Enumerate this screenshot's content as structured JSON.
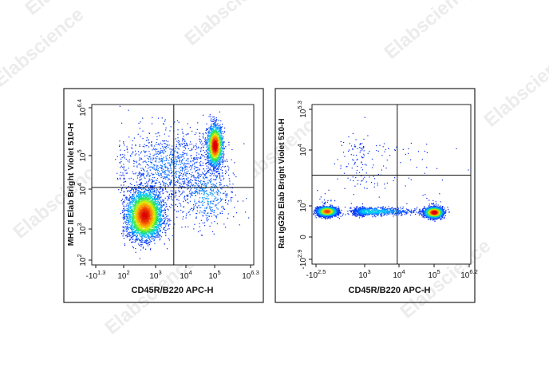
{
  "watermark": "Elabscience",
  "chart_data": [
    {
      "type": "scatter",
      "subtype": "flow-cytometry-density-dot-plot",
      "xlabel": "CD45R/B220 APC-H",
      "ylabel": "MHC II Elab Bright Violet 510-H",
      "x_scale": "biexponential",
      "y_scale": "biexponential",
      "xlim_label_min": "-10^1.3",
      "xlim_label_max": "10^6.3",
      "ylim_label_min": "10^2",
      "ylim_label_max": "10^6.4",
      "x_ticks": [
        {
          "base": "-10",
          "exp": "1.3"
        },
        {
          "base": "10",
          "exp": "2"
        },
        {
          "base": "10",
          "exp": "3"
        },
        {
          "base": "10",
          "exp": "4"
        },
        {
          "base": "10",
          "exp": "5"
        },
        {
          "base": "10",
          "exp": "6.3"
        }
      ],
      "y_ticks": [
        {
          "base": "10",
          "exp": "2"
        },
        {
          "base": "10",
          "exp": "3"
        },
        {
          "base": "10",
          "exp": "4"
        },
        {
          "base": "10",
          "exp": "5"
        },
        {
          "base": "10",
          "exp": "6.4"
        }
      ],
      "x_tick_decades": [
        -1.3,
        2,
        3,
        4,
        5,
        6.3
      ],
      "y_tick_decades": [
        2,
        3,
        4,
        5,
        6.4
      ],
      "quadrant_gate": {
        "x_decade": 3.6,
        "y_decade": 4.05
      },
      "populations": [
        {
          "x_decade": 2.65,
          "y_decade": 3.35,
          "relative_density": 0.95,
          "sx": 0.28,
          "sy": 0.32,
          "n": 3600
        },
        {
          "x_decade": 5.0,
          "y_decade": 5.3,
          "relative_density": 1.0,
          "sx": 0.14,
          "sy": 0.3,
          "n": 1700
        },
        {
          "x_decade": 3.4,
          "y_decade": 4.7,
          "relative_density": 0.15,
          "sx": 0.8,
          "sy": 0.55,
          "n": 1100
        },
        {
          "x_decade": 4.7,
          "y_decade": 3.9,
          "relative_density": 0.2,
          "sx": 0.5,
          "sy": 0.45,
          "n": 500
        }
      ],
      "grid": false,
      "legend": "none"
    },
    {
      "type": "scatter",
      "subtype": "flow-cytometry-density-dot-plot",
      "xlabel": "CD45R/B220 APC-H",
      "ylabel": "Rat IgG2b Elab Bright Violet 510-H",
      "x_scale": "biexponential",
      "y_scale": "biexponential",
      "xlim_label_min": "-10^2.5",
      "xlim_label_max": "10^6.2",
      "ylim_label_min": "-10^2.9",
      "ylim_label_max": "10^5.3",
      "x_ticks": [
        {
          "base": "-10",
          "exp": "2.5"
        },
        {
          "base": "10",
          "exp": "3"
        },
        {
          "base": "10",
          "exp": "4"
        },
        {
          "base": "10",
          "exp": "5"
        },
        {
          "base": "10",
          "exp": "6.2"
        }
      ],
      "y_ticks": [
        {
          "base": "-10",
          "exp": "2.9"
        },
        {
          "base": "0",
          "exp": ""
        },
        {
          "base": "10",
          "exp": "3"
        },
        {
          "base": "10",
          "exp": "4"
        },
        {
          "base": "10",
          "exp": "5.3"
        }
      ],
      "x_tick_decades": [
        -2.5,
        3,
        4,
        5,
        6.2
      ],
      "y_tick_decades": [
        -2.9,
        0,
        3,
        4,
        5.3
      ],
      "quadrant_gate": {
        "x_decade": 3.95,
        "y_decade": 3.55
      },
      "populations": [
        {
          "x_decade": -1.3,
          "y_decade": 2.5,
          "relative_density": 0.85,
          "sx": 0.55,
          "sy": 0.22,
          "n": 2600
        },
        {
          "x_decade": 5.0,
          "y_decade": 2.4,
          "relative_density": 1.0,
          "sx": 0.14,
          "sy": 0.25,
          "n": 2200
        },
        {
          "x_decade": 3.1,
          "y_decade": 2.5,
          "relative_density": 0.3,
          "sx": 0.7,
          "sy": 0.2,
          "n": 900
        },
        {
          "x_decade": 2.5,
          "y_decade": 3.8,
          "relative_density": 0.05,
          "sx": 1.3,
          "sy": 0.35,
          "n": 160
        }
      ],
      "grid": false,
      "legend": "none"
    }
  ]
}
